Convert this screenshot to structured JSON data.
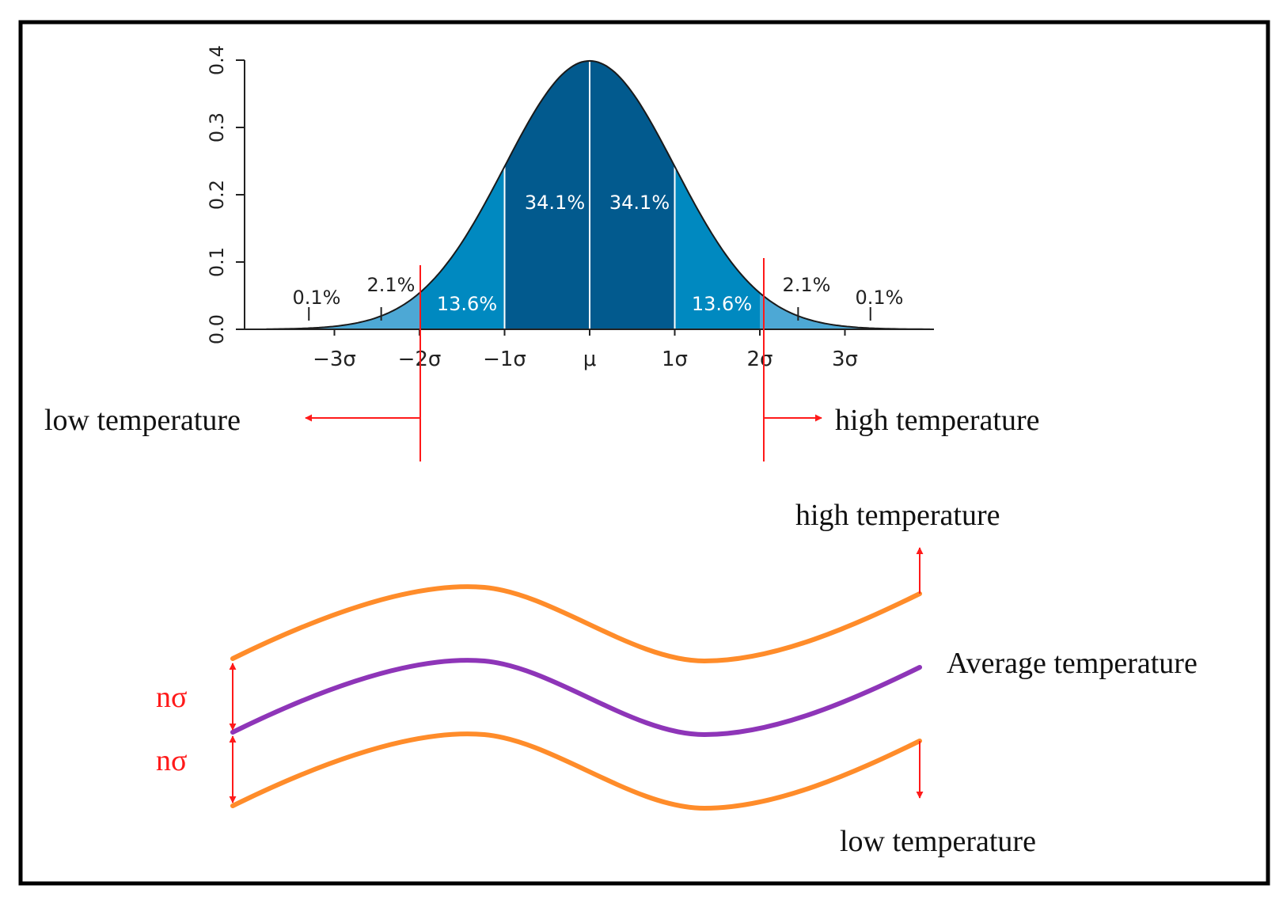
{
  "chart_data": {
    "type": "area",
    "distribution": "normal",
    "x_ticks": [
      "−3σ",
      "−2σ",
      "−1σ",
      "μ",
      "1σ",
      "2σ",
      "3σ"
    ],
    "y_ticks": [
      "0.0",
      "0.1",
      "0.2",
      "0.3",
      "0.4"
    ],
    "ylim": [
      0,
      0.4
    ],
    "xlim_sigma": [
      -3.8,
      4.0
    ],
    "peak_density": 0.3989,
    "band_labels": [
      {
        "text": "0.1%",
        "band": "beyond -3σ"
      },
      {
        "text": "2.1%",
        "band": "-3σ to -2σ"
      },
      {
        "text": "13.6%",
        "band": "-2σ to -1σ"
      },
      {
        "text": "34.1%",
        "band": "-1σ to μ"
      },
      {
        "text": "34.1%",
        "band": "μ to 1σ"
      },
      {
        "text": "13.6%",
        "band": "1σ to 2σ"
      },
      {
        "text": "2.1%",
        "band": "2σ to 3σ"
      },
      {
        "text": "0.1%",
        "band": "beyond 3σ"
      }
    ],
    "thresholds_sigma": [
      -2,
      2
    ],
    "band_colors": {
      "inner": "#025a8e",
      "middle": "#0089c0",
      "outer": "#4da8d5",
      "curve": "#1a1a1a",
      "divider": "#ffffff"
    }
  },
  "threshold_labels": {
    "low": "low temperature",
    "high": "high temperature"
  },
  "band_diagram": {
    "upper_label": "high temperature",
    "middle_label": "Average temperature",
    "lower_label": "low temperature",
    "offset_label": "nσ",
    "upper_color": "#ff8c2a",
    "middle_color": "#8e35b8",
    "lower_color": "#ff8c2a"
  },
  "colors": {
    "threshold": "#ff1a1a",
    "frame": "#000000",
    "axis": "#222222"
  }
}
